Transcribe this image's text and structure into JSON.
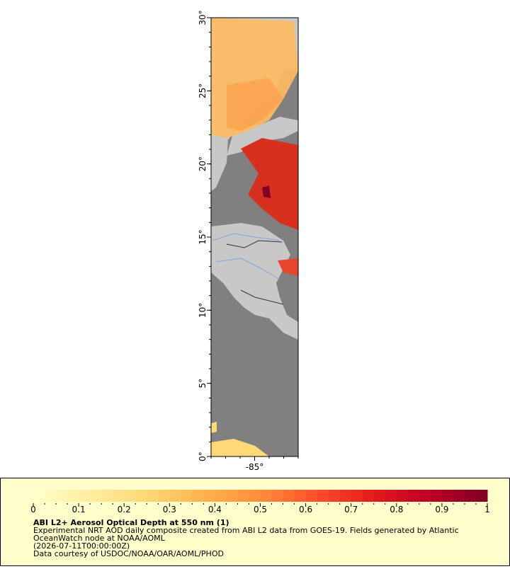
{
  "map": {
    "xticks": [
      {
        "value": -85,
        "label": "-85°"
      }
    ],
    "yticks": [
      {
        "value": 0,
        "label": "0°"
      },
      {
        "value": 5,
        "label": "5°"
      },
      {
        "value": 10,
        "label": "10°"
      },
      {
        "value": 15,
        "label": "15°"
      },
      {
        "value": 20,
        "label": "20°"
      },
      {
        "value": 25,
        "label": "25°"
      },
      {
        "value": 30,
        "label": "30°"
      }
    ],
    "xlim": [
      -88,
      -82
    ],
    "ylim": [
      0,
      30
    ]
  },
  "colorbar": {
    "ticks": [
      0,
      0.1,
      0.2,
      0.3,
      0.4,
      0.5,
      0.6,
      0.7,
      0.8,
      0.9,
      1
    ],
    "range": [
      0,
      1
    ],
    "colors": [
      "#ffffcc",
      "#ffeda0",
      "#fed976",
      "#feb24c",
      "#fd8d3c",
      "#fc4e2a",
      "#e31a1c",
      "#bd0026",
      "#800026"
    ]
  },
  "caption": {
    "title": "ABI L2+ Aerosol Optical Depth at 550 nm (1)",
    "lines": [
      "Experimental NRT AOD daily composite created from ABI L2 data from GOES-19. Fields generated by Atlantic",
      "OceanWatch node at NOAA/AOML",
      "(2026-07-11T00:00:00Z)",
      "Data courtesy of USDOC/NOAA/OAR/AOML/PHOD"
    ]
  }
}
